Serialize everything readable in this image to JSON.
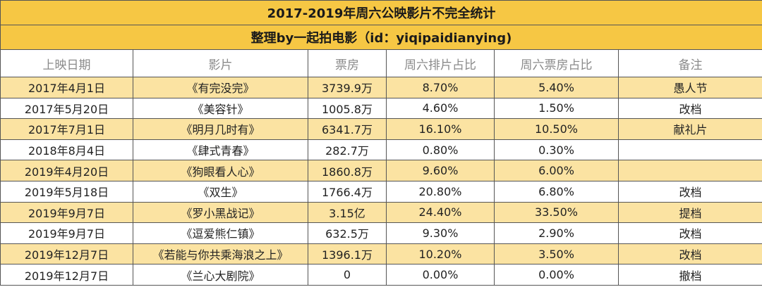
{
  "header": {
    "title": "2017-2019年周六公映影片不完全统计",
    "subtitle": "整理by一起拍电影（id：yiqipaidianying)"
  },
  "table": {
    "columns": [
      "上映日期",
      "影片",
      "票房",
      "周六排片占比",
      "周六票房占比",
      "备注"
    ],
    "rows": [
      [
        "2017年4月1日",
        "《有完没完》",
        "3739.9万",
        "8.70%",
        "5.40%",
        "愚人节"
      ],
      [
        "2017年5月20日",
        "《美容针》",
        "1005.8万",
        "4.60%",
        "1.50%",
        "改档"
      ],
      [
        "2017年7月1日",
        "《明月几时有》",
        "6341.7万",
        "16.10%",
        "10.50%",
        "献礼片"
      ],
      [
        "2018年8月4日",
        "《肆式青春》",
        "282.7万",
        "0.80%",
        "0.30%"
      ],
      [
        "2019年4月20日",
        "《狗眼看人心》",
        "1860.8万",
        "9.60%",
        "6.00%"
      ],
      [
        "2019年5月18日",
        "《双生》",
        "1766.4万",
        "20.80%",
        "6.80%",
        "改档"
      ],
      [
        "2019年9月7日",
        "《罗小黑战记》",
        "3.15亿",
        "24.40%",
        "33.50%",
        "提档"
      ],
      [
        "2019年9月7日",
        "《逗爱熊仁镇》",
        "632.5万",
        "9.30%",
        "2.90%",
        "改档"
      ],
      [
        "2019年12月7日",
        "《若能与你共乘海浪之上》",
        "1396.1万",
        "10.20%",
        "3.50%",
        "改档"
      ],
      [
        "2019年12月7日",
        "《兰心大剧院》",
        "0",
        "0.00%",
        "0.00%",
        "撤档"
      ]
    ]
  }
}
